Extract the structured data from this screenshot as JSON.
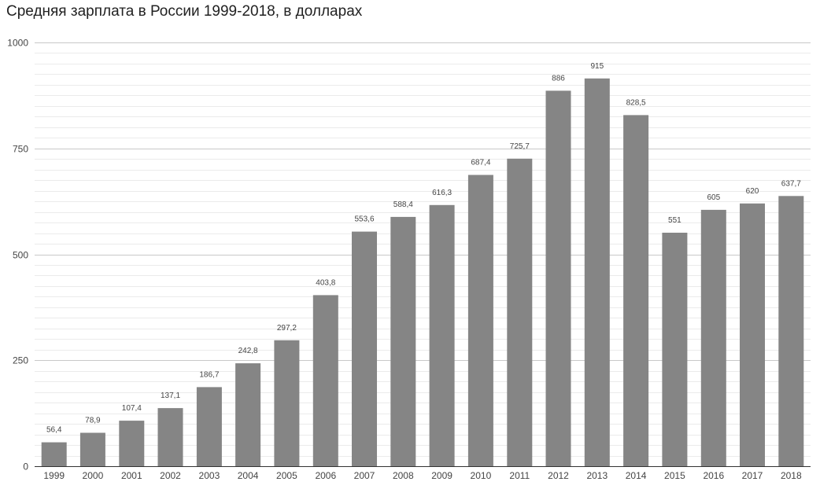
{
  "chart_data": {
    "type": "bar",
    "title": "Средняя зарплата в России 1999-2018, в долларах",
    "xlabel": "",
    "ylabel": "",
    "ylim": [
      0,
      1000
    ],
    "yticks": [
      0,
      250,
      500,
      750,
      1000
    ],
    "grid": true,
    "legend": "none",
    "bar_color": "#858585",
    "categories": [
      "1999",
      "2000",
      "2001",
      "2002",
      "2003",
      "2004",
      "2005",
      "2006",
      "2007",
      "2008",
      "2009",
      "2010",
      "2011",
      "2012",
      "2013",
      "2014",
      "2015",
      "2016",
      "2017",
      "2018"
    ],
    "values": [
      56.4,
      78.9,
      107.4,
      137.1,
      186.7,
      242.8,
      297.2,
      403.8,
      553.6,
      588.4,
      616.3,
      687.4,
      725.7,
      886,
      915,
      828.5,
      551,
      605,
      620,
      637.7
    ],
    "data_labels": [
      "56,4",
      "78,9",
      "107,4",
      "137,1",
      "186,7",
      "242,8",
      "297,2",
      "403,8",
      "553,6",
      "588,4",
      "616,3",
      "687,4",
      "725,7",
      "886",
      "915",
      "828,5",
      "551",
      "605",
      "620",
      "637,7"
    ]
  }
}
